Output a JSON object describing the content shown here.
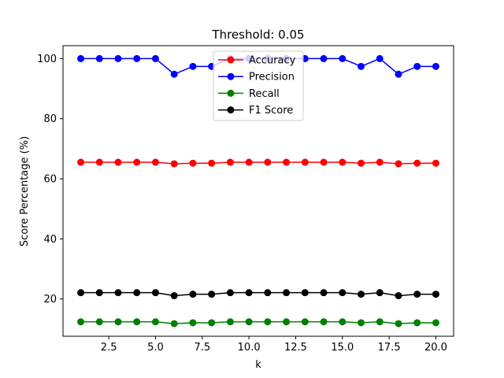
{
  "chart_data": {
    "type": "line",
    "title": "Threshold: 0.05",
    "xlabel": "k",
    "ylabel": "Score Percentage (%)",
    "xlim": [
      0.05,
      20.95
    ],
    "ylim": [
      7.6,
      104.3
    ],
    "xticks": [
      2.5,
      5.0,
      7.5,
      10.0,
      12.5,
      15.0,
      17.5,
      20.0
    ],
    "xtick_labels": [
      "2.5",
      "5.0",
      "7.5",
      "10.0",
      "12.5",
      "15.0",
      "17.5",
      "20.0"
    ],
    "yticks": [
      20,
      40,
      60,
      80,
      100
    ],
    "ytick_labels": [
      "20",
      "40",
      "60",
      "80",
      "100"
    ],
    "grid": false,
    "legend_position": "top-center",
    "x": [
      1,
      2,
      3,
      4,
      5,
      6,
      7,
      8,
      9,
      10,
      11,
      12,
      13,
      14,
      15,
      16,
      17,
      18,
      19,
      20
    ],
    "series": [
      {
        "name": "Accuracy",
        "color": "#ff0000",
        "values": [
          65.5,
          65.5,
          65.5,
          65.5,
          65.5,
          65.0,
          65.2,
          65.2,
          65.5,
          65.5,
          65.5,
          65.5,
          65.5,
          65.5,
          65.5,
          65.2,
          65.5,
          65.0,
          65.2,
          65.2
        ]
      },
      {
        "name": "Precision",
        "color": "#0000ff",
        "values": [
          100,
          100,
          100,
          100,
          100,
          94.8,
          97.4,
          97.4,
          100,
          100,
          100,
          100,
          100,
          100,
          100,
          97.4,
          100,
          94.8,
          97.4,
          97.4
        ]
      },
      {
        "name": "Recall",
        "color": "#008000",
        "values": [
          12.4,
          12.4,
          12.4,
          12.4,
          12.4,
          11.8,
          12.1,
          12.1,
          12.4,
          12.4,
          12.4,
          12.4,
          12.4,
          12.4,
          12.4,
          12.1,
          12.4,
          11.8,
          12.1,
          12.1
        ]
      },
      {
        "name": "F1 Score",
        "color": "#000000",
        "values": [
          22.1,
          22.1,
          22.1,
          22.1,
          22.1,
          21.1,
          21.6,
          21.6,
          22.1,
          22.1,
          22.1,
          22.1,
          22.1,
          22.1,
          22.1,
          21.6,
          22.1,
          21.1,
          21.6,
          21.6
        ]
      }
    ]
  }
}
